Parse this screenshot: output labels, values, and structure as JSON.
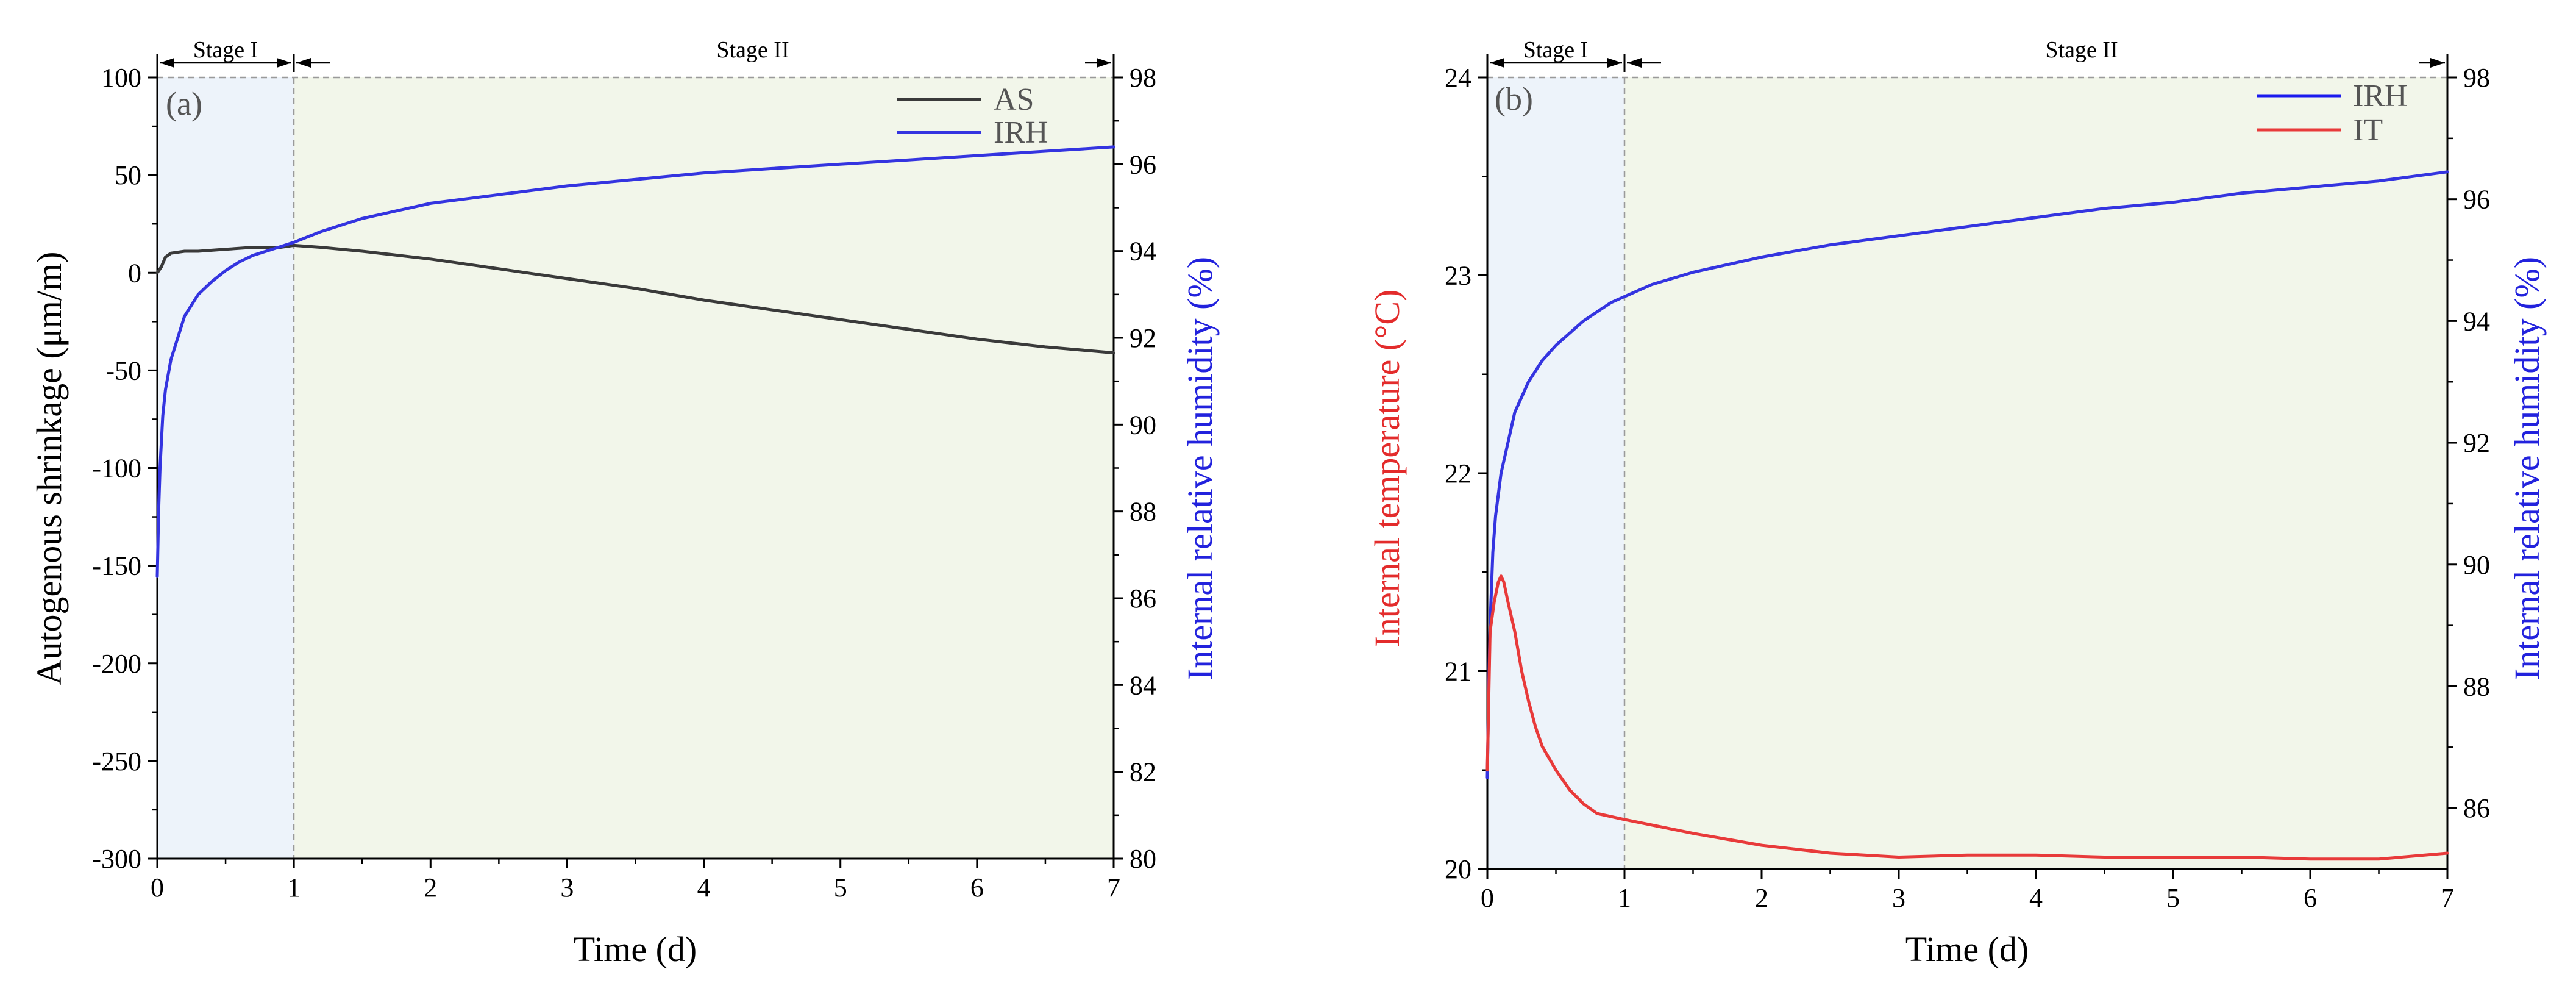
{
  "chart_data": [
    {
      "panel_label": "(a)",
      "type": "line",
      "xlabel": "Time (d)",
      "ylabel_left": "Autogenous shrinkage (μm/m)",
      "ylabel_right": "Internal relative humidity (%)",
      "xlim": [
        0,
        7
      ],
      "ylim_left": [
        -300,
        100
      ],
      "ylim_right": [
        80,
        98
      ],
      "x_ticks": [
        "0",
        "1",
        "2",
        "3",
        "4",
        "5",
        "6",
        "7"
      ],
      "y_left_ticks": [
        "100",
        "50",
        "0",
        "-50",
        "-100",
        "-150",
        "-200",
        "-250",
        "-300"
      ],
      "y_right_ticks": [
        "98",
        "96",
        "94",
        "92",
        "90",
        "88",
        "86",
        "84",
        "82",
        "80"
      ],
      "stages": [
        {
          "label": "Stage I",
          "x0": 0,
          "x1": 1,
          "color": "#edf3fa"
        },
        {
          "label": "Stage II",
          "x0": 1,
          "x1": 7,
          "color": "#f2f6ea"
        }
      ],
      "legend": [
        {
          "name": "AS",
          "color": "#3a3a3a"
        },
        {
          "name": "IRH",
          "color": "#3434e0"
        }
      ],
      "series": [
        {
          "name": "AS",
          "axis": "left",
          "color": "#3a3a3a",
          "x": [
            0,
            0.03,
            0.06,
            0.1,
            0.2,
            0.3,
            0.5,
            0.7,
            0.9,
            1.0,
            1.2,
            1.5,
            2.0,
            2.5,
            3.0,
            3.5,
            4.0,
            4.5,
            5.0,
            5.5,
            6.0,
            6.5,
            7.0
          ],
          "y": [
            0,
            3,
            8,
            10,
            11,
            11,
            12,
            13,
            13,
            14,
            13,
            11,
            7,
            2,
            -3,
            -8,
            -14,
            -19,
            -24,
            -29,
            -34,
            -38,
            -41
          ]
        },
        {
          "name": "IRH",
          "axis": "right",
          "color": "#3434e0",
          "x": [
            0,
            0.01,
            0.02,
            0.04,
            0.06,
            0.1,
            0.15,
            0.2,
            0.3,
            0.4,
            0.5,
            0.6,
            0.7,
            0.8,
            0.9,
            1.0,
            1.2,
            1.5,
            2.0,
            2.5,
            3.0,
            3.5,
            4.0,
            4.5,
            5.0,
            5.5,
            6.0,
            6.5,
            7.0
          ],
          "y": [
            86.5,
            88.0,
            89.0,
            90.2,
            90.8,
            91.5,
            92.0,
            92.5,
            93.0,
            93.3,
            93.55,
            93.75,
            93.9,
            94.0,
            94.1,
            94.2,
            94.45,
            94.75,
            95.1,
            95.3,
            95.5,
            95.65,
            95.8,
            95.9,
            96.0,
            96.1,
            96.2,
            96.3,
            96.4
          ]
        }
      ]
    },
    {
      "panel_label": "(b)",
      "type": "line",
      "xlabel": "Time (d)",
      "ylabel_left": "Internal temperature (°C)",
      "ylabel_right": "Internal relative humidity (%)",
      "xlim": [
        0,
        7
      ],
      "ylim_left": [
        20,
        24
      ],
      "ylim_right": [
        85,
        98
      ],
      "x_ticks": [
        "0",
        "1",
        "2",
        "3",
        "4",
        "5",
        "6",
        "7"
      ],
      "y_left_ticks": [
        "24",
        "23",
        "22",
        "21",
        "20"
      ],
      "y_right_ticks": [
        "98",
        "96",
        "94",
        "92",
        "90",
        "88",
        "86"
      ],
      "stages": [
        {
          "label": "Stage I",
          "x0": 0,
          "x1": 1,
          "color": "#edf3fa"
        },
        {
          "label": "Stage II",
          "x0": 1,
          "x1": 7,
          "color": "#f2f6ea"
        }
      ],
      "legend": [
        {
          "name": "IRH",
          "color": "#1a1aee"
        },
        {
          "name": "IT",
          "color": "#e83a3a"
        }
      ],
      "series": [
        {
          "name": "IRH",
          "axis": "right",
          "color": "#3434e0",
          "x": [
            0,
            0.01,
            0.02,
            0.04,
            0.06,
            0.1,
            0.15,
            0.2,
            0.3,
            0.4,
            0.5,
            0.6,
            0.7,
            0.8,
            0.9,
            1.0,
            1.2,
            1.5,
            2.0,
            2.5,
            3.0,
            3.5,
            4.0,
            4.5,
            5.0,
            5.5,
            6.0,
            6.5,
            7.0
          ],
          "y": [
            86.5,
            88.0,
            89.0,
            90.2,
            90.8,
            91.5,
            92.0,
            92.5,
            93.0,
            93.35,
            93.6,
            93.8,
            94.0,
            94.15,
            94.3,
            94.4,
            94.6,
            94.8,
            95.05,
            95.25,
            95.4,
            95.55,
            95.7,
            95.85,
            95.95,
            96.1,
            96.2,
            96.3,
            96.45
          ]
        },
        {
          "name": "IT",
          "axis": "left",
          "color": "#e83a3a",
          "x": [
            0,
            0.02,
            0.05,
            0.08,
            0.1,
            0.12,
            0.15,
            0.2,
            0.25,
            0.3,
            0.35,
            0.4,
            0.5,
            0.6,
            0.7,
            0.8,
            1.0,
            1.5,
            2.0,
            2.5,
            3.0,
            3.5,
            4.0,
            4.5,
            5.0,
            5.5,
            6.0,
            6.5,
            7.0
          ],
          "y": [
            20.5,
            21.2,
            21.35,
            21.45,
            21.48,
            21.45,
            21.35,
            21.2,
            21.0,
            20.85,
            20.72,
            20.62,
            20.5,
            20.4,
            20.33,
            20.28,
            20.25,
            20.18,
            20.12,
            20.08,
            20.06,
            20.07,
            20.07,
            20.06,
            20.06,
            20.06,
            20.05,
            20.05,
            20.08
          ]
        }
      ]
    }
  ]
}
